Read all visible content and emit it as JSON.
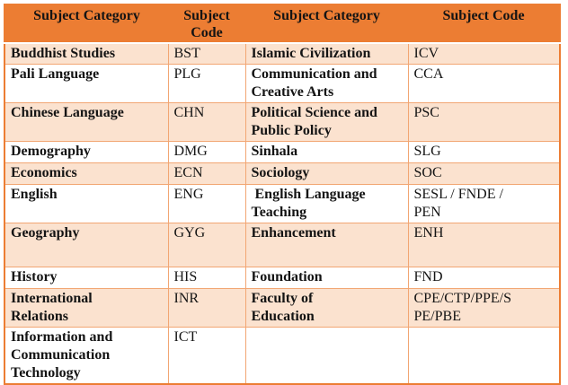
{
  "colors": {
    "header_bg": "#EC7D33",
    "band_bg": "#FBE2CF",
    "row_bg": "#FFFFFF",
    "border_inner": "#F2A673",
    "border_outer": "#EC7D33",
    "text": "#141414"
  },
  "table": {
    "header": [
      "Subject Category",
      "Subject Code",
      "Subject Category",
      "Subject Code"
    ],
    "rows": [
      {
        "cells": [
          "Buddhist Studies",
          "BST",
          "Islamic Civilization",
          "ICV"
        ]
      },
      {
        "cells": [
          "Pali Language",
          "PLG",
          "Communication and\nCreative Arts",
          "CCA"
        ]
      },
      {
        "cells": [
          "Chinese Language",
          "CHN",
          "Political Science and\nPublic Policy",
          "PSC"
        ]
      },
      {
        "cells": [
          "Demography",
          "DMG",
          "Sinhala",
          "SLG"
        ]
      },
      {
        "cells": [
          "Economics",
          "ECN",
          "Sociology",
          "SOC"
        ]
      },
      {
        "cells": [
          "English",
          "ENG",
          " English Language\nTeaching",
          "SESL / FNDE /\nPEN"
        ]
      },
      {
        "cells": [
          "Geography",
          "GYG",
          "Enhancement",
          "ENH"
        ]
      },
      {
        "cells": [
          "History",
          "HIS",
          "Foundation",
          "FND"
        ]
      },
      {
        "cells": [
          "International\nRelations",
          "INR",
          "Faculty of\nEducation",
          "CPE/CTP/PPE/S\nPE/PBE"
        ]
      },
      {
        "cells": [
          "Information and\nCommunication\nTechnology",
          "ICT",
          "",
          ""
        ]
      }
    ]
  }
}
